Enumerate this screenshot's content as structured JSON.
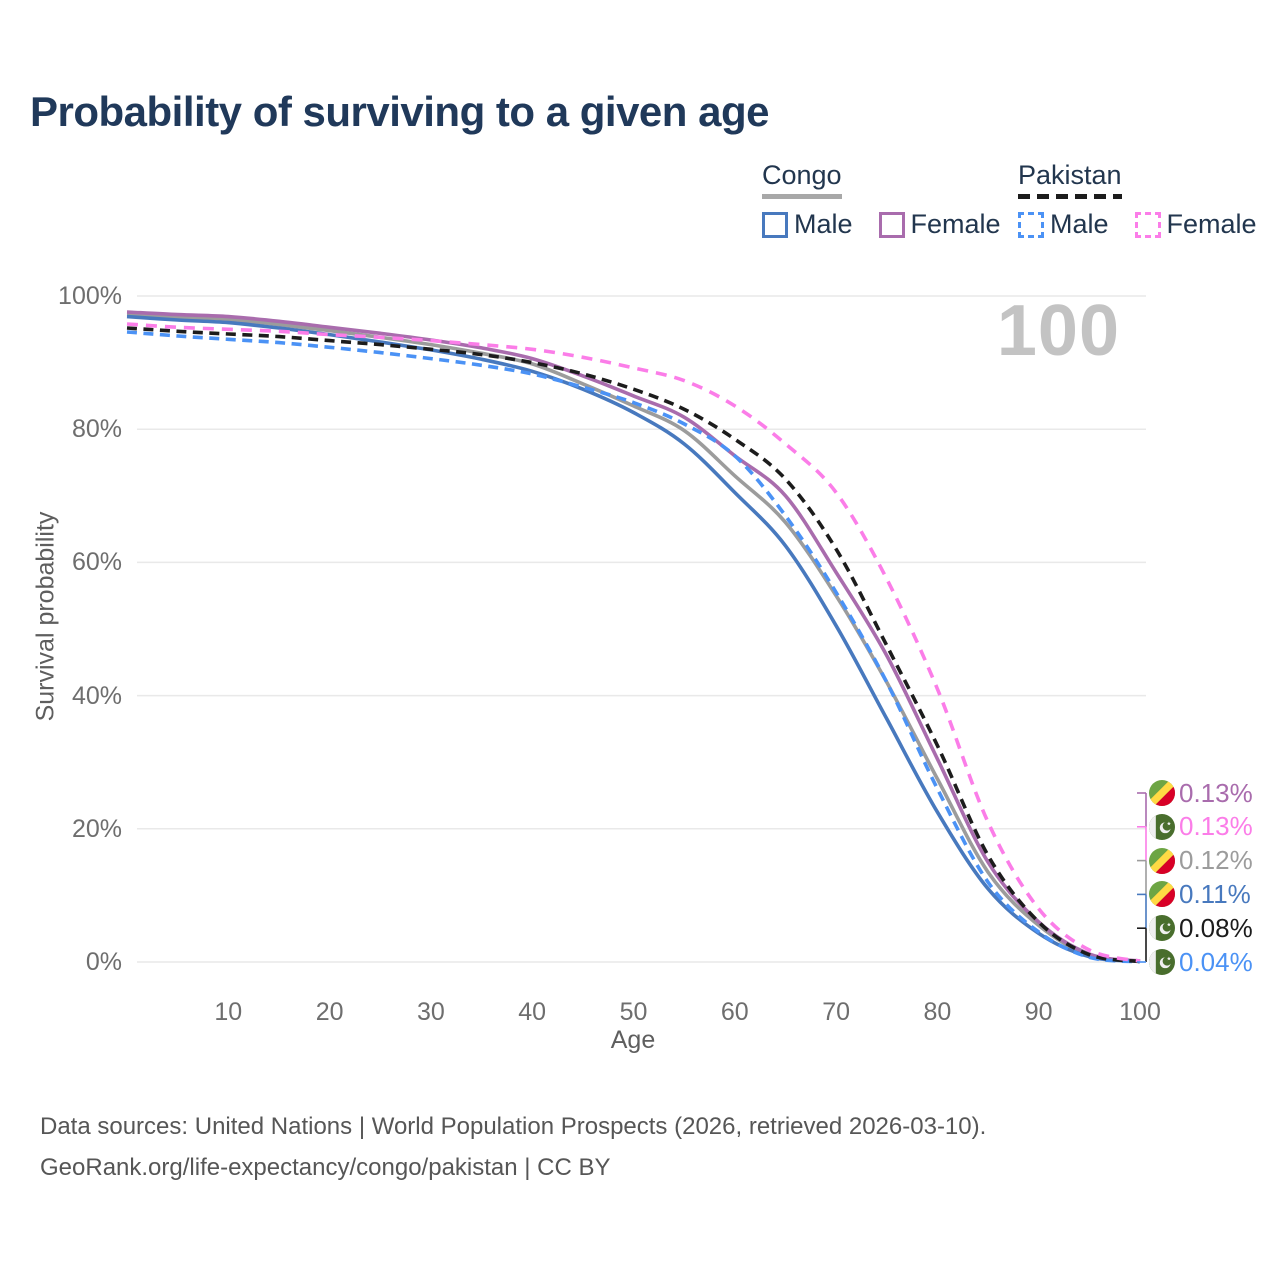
{
  "title": "Probability of surviving to a given age",
  "watermark": "100",
  "legend": {
    "groups": [
      {
        "name": "Congo",
        "underline": {
          "color": "#a8a8a8",
          "dashed": false
        },
        "items": [
          {
            "label": "Male",
            "color": "#4879be",
            "dashed": false
          },
          {
            "label": "Female",
            "color": "#a96cad",
            "dashed": false
          }
        ]
      },
      {
        "name": "Pakistan",
        "underline": {
          "color": "#1c1c1c",
          "dashed": true
        },
        "items": [
          {
            "label": "Male",
            "color": "#4b92f5",
            "dashed": true
          },
          {
            "label": "Female",
            "color": "#fb7de8",
            "dashed": true
          }
        ]
      }
    ]
  },
  "chart_data": {
    "type": "line",
    "title": "Probability of surviving to a given age",
    "xlabel": "Age",
    "ylabel": "Survival probability",
    "xlim": [
      0,
      100
    ],
    "ylim": [
      0,
      100
    ],
    "grid": true,
    "legend_position": "top-right",
    "x_ticks": [
      10,
      20,
      30,
      40,
      50,
      60,
      70,
      80,
      90,
      100
    ],
    "y_ticks": [
      0,
      20,
      40,
      60,
      80,
      100
    ],
    "y_tick_labels": [
      "0%",
      "20%",
      "40%",
      "60%",
      "80%",
      "100%"
    ],
    "x": [
      0,
      5,
      10,
      15,
      20,
      25,
      30,
      35,
      40,
      45,
      50,
      55,
      60,
      65,
      70,
      75,
      80,
      85,
      90,
      95,
      100
    ],
    "series": [
      {
        "id": "congo-all",
        "label": "Congo",
        "flag": "congo",
        "color": "#9c9c9c",
        "dashed": false,
        "end_label": "0.12%",
        "values": [
          97.2,
          96.8,
          96.5,
          95.7,
          94.8,
          93.8,
          92.7,
          91.4,
          89.8,
          86.8,
          83.5,
          79.8,
          73.0,
          66.0,
          55.0,
          42.0,
          27.5,
          13.5,
          5.5,
          1.0,
          0.12
        ]
      },
      {
        "id": "congo-male",
        "label": "Congo Male",
        "flag": "congo",
        "color": "#4879be",
        "dashed": false,
        "end_label": "0.11%",
        "values": [
          96.9,
          96.4,
          96.0,
          95.2,
          94.2,
          93.1,
          91.9,
          90.5,
          88.7,
          86.0,
          82.5,
          77.8,
          70.5,
          62.5,
          50.5,
          36.5,
          22.5,
          11.0,
          4.3,
          0.8,
          0.11
        ]
      },
      {
        "id": "congo-female",
        "label": "Congo Female",
        "flag": "congo",
        "color": "#a96cad",
        "dashed": false,
        "end_label": "0.13%",
        "values": [
          97.6,
          97.2,
          96.9,
          96.2,
          95.3,
          94.4,
          93.4,
          92.2,
          90.6,
          88.0,
          85.0,
          81.8,
          76.0,
          70.0,
          58.5,
          46.0,
          30.5,
          15.0,
          6.0,
          1.2,
          0.13
        ]
      },
      {
        "id": "pakistan-male",
        "label": "Pakistan Male",
        "flag": "pakistan",
        "color": "#4b92f5",
        "dashed": true,
        "end_label": "0.04%",
        "values": [
          94.6,
          94.0,
          93.5,
          93.0,
          92.3,
          91.5,
          90.6,
          89.6,
          88.3,
          86.3,
          84.0,
          80.8,
          76.0,
          67.0,
          55.5,
          42.0,
          26.0,
          12.0,
          4.5,
          0.7,
          0.04
        ]
      },
      {
        "id": "pakistan-all",
        "label": "Pakistan",
        "flag": "pakistan",
        "color": "#1c1c1c",
        "dashed": true,
        "end_label": "0.08%",
        "values": [
          95.2,
          94.7,
          94.3,
          93.9,
          93.3,
          92.7,
          92.0,
          91.2,
          90.0,
          88.3,
          86.0,
          83.0,
          78.5,
          72.5,
          62.0,
          47.5,
          32.5,
          16.0,
          6.0,
          1.1,
          0.08
        ]
      },
      {
        "id": "pakistan-female",
        "label": "Pakistan Female",
        "flag": "pakistan",
        "color": "#fb7de8",
        "dashed": true,
        "end_label": "0.13%",
        "values": [
          95.8,
          95.3,
          95.0,
          94.7,
          94.2,
          93.8,
          93.3,
          92.7,
          92.0,
          90.8,
          89.2,
          87.3,
          83.5,
          77.8,
          70.5,
          57.5,
          41.0,
          21.0,
          8.0,
          1.8,
          0.13
        ]
      }
    ],
    "end_labels": [
      {
        "flag": "congo",
        "series": "Congo Female",
        "text": "0.13%",
        "color": "#a96cad"
      },
      {
        "flag": "pakistan",
        "series": "Pakistan Female",
        "text": "0.13%",
        "color": "#fb7de8"
      },
      {
        "flag": "congo",
        "series": "Congo",
        "text": "0.12%",
        "color": "#9c9c9c"
      },
      {
        "flag": "congo",
        "series": "Congo Male",
        "text": "0.11%",
        "color": "#4879be"
      },
      {
        "flag": "pakistan",
        "series": "Pakistan",
        "text": "0.08%",
        "color": "#1c1c1c"
      },
      {
        "flag": "pakistan",
        "series": "Pakistan Male",
        "text": "0.04%",
        "color": "#4b92f5"
      }
    ]
  },
  "footer": {
    "line1": "Data sources: United Nations | World Population Prospects (2026, retrieved 2026-03-10).",
    "line2": "GeoRank.org/life-expectancy/congo/pakistan | CC BY"
  }
}
